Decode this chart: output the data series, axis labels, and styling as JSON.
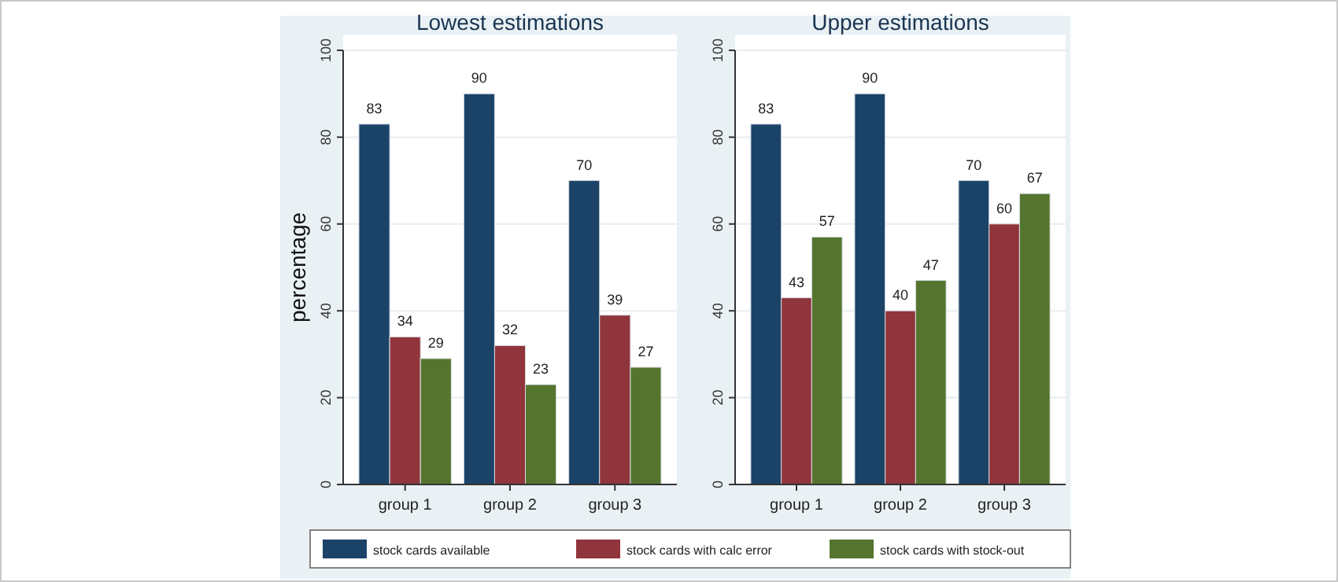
{
  "chart_data": [
    {
      "type": "bar",
      "title": "Lowest estimations",
      "ylabel": "percentage",
      "categories": [
        "group 1",
        "group 2",
        "group 3"
      ],
      "series": [
        {
          "name": "stock cards available",
          "color": "#1b4368",
          "values": [
            83,
            90,
            70
          ]
        },
        {
          "name": "stock cards with calc error",
          "color": "#90353b",
          "values": [
            34,
            32,
            39
          ]
        },
        {
          "name": "stock cards with stock-out",
          "color": "#55752f",
          "values": [
            29,
            23,
            27
          ]
        }
      ],
      "ylim": [
        0,
        100
      ],
      "yticks": [
        0,
        20,
        40,
        60,
        80,
        100
      ],
      "grid": "y",
      "data_labels": true,
      "legend": "bottom"
    },
    {
      "type": "bar",
      "title": "Upper estimations",
      "categories": [
        "group 1",
        "group 2",
        "group 3"
      ],
      "series": [
        {
          "color": "#1b4368",
          "values": [
            83,
            90,
            70
          ]
        },
        {
          "color": "#90353b",
          "values": [
            43,
            40,
            60
          ]
        },
        {
          "color": "#55752f",
          "values": [
            57,
            47,
            67
          ]
        }
      ],
      "ylim": [
        0,
        100
      ],
      "yticks": [
        0,
        20,
        40,
        60,
        80,
        100
      ],
      "grid": "y",
      "data_labels": true
    }
  ]
}
